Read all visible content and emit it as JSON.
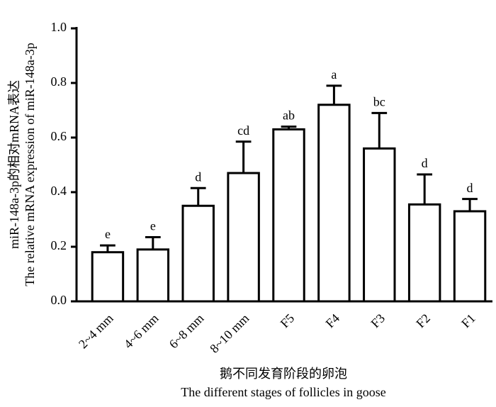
{
  "chart_data": {
    "type": "bar",
    "y_label": [
      "miR-148a-3p的相对mRNA表达",
      "The relative mRNA expression of miR-148a-3p"
    ],
    "x_label": [
      "鹅不同发育阶段的卵泡",
      "The different stages of follicles in goose"
    ],
    "categories": [
      "2~4 mm",
      "4~6 mm",
      "6~8 mm",
      "8~10 mm",
      "F5",
      "F4",
      "F3",
      "F2",
      "F1"
    ],
    "values": [
      0.18,
      0.19,
      0.35,
      0.47,
      0.63,
      0.72,
      0.56,
      0.355,
      0.33
    ],
    "errors": [
      0.025,
      0.045,
      0.065,
      0.115,
      0.01,
      0.07,
      0.13,
      0.11,
      0.045
    ],
    "letters": [
      "e",
      "e",
      "d",
      "cd",
      "ab",
      "a",
      "bc",
      "d",
      "d"
    ],
    "color": "#ffffff",
    "ylim": [
      0,
      1
    ],
    "yticks": [
      {
        "value": 0,
        "label": "0.0"
      },
      0.2,
      0.4,
      0.6,
      0.8,
      {
        "value": 1,
        "label": "1.0"
      }
    ]
  }
}
